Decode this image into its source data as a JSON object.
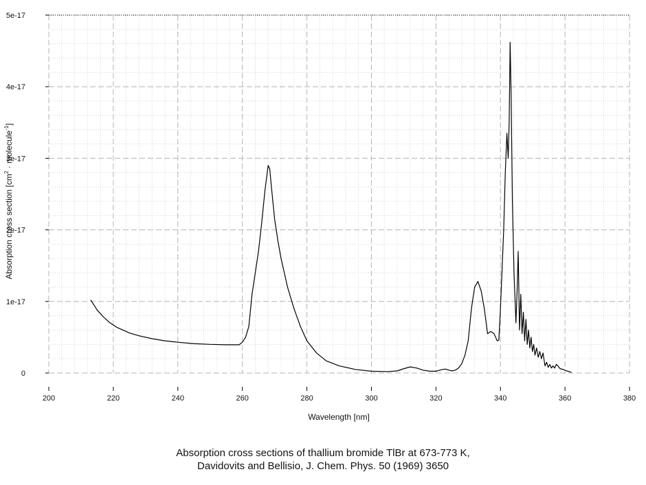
{
  "caption": {
    "line1": "Absorption cross sections of thallium bromide TlBr at 673-773 K,",
    "line2": "Davidovits and Bellisio, J. Chem. Phys. 50 (1969) 3650"
  },
  "colors": {
    "line": "#000000",
    "grid_major": "#b4b4b4",
    "grid_minor": "#d4d4d4"
  },
  "chart_data": {
    "type": "line",
    "title": "",
    "xlabel": "Wavelength [nm]",
    "ylabel_parts": [
      "Absorption cross section [cm",
      "2",
      " · molecule",
      "-1",
      "]"
    ],
    "xlim": [
      200,
      380
    ],
    "ylim": [
      0,
      5e-17
    ],
    "x_ticks": [
      200,
      220,
      240,
      260,
      280,
      300,
      320,
      340,
      360,
      380
    ],
    "x_tick_labels": [
      "200",
      "220",
      "240",
      "260",
      "280",
      "300",
      "320",
      "340",
      "360",
      "380"
    ],
    "y_ticks": [
      0,
      1e-17,
      2e-17,
      3e-17,
      4e-17,
      5e-17
    ],
    "y_tick_labels": [
      "0",
      "1e-17",
      "2e-17",
      "3e-17",
      "4e-17",
      "5e-17"
    ],
    "grid": true,
    "series": [
      {
        "points": [
          [
            213,
            1.02e-17
          ],
          [
            215,
            8.8e-18
          ],
          [
            217,
            7.8e-18
          ],
          [
            219,
            7e-18
          ],
          [
            221,
            6.4e-18
          ],
          [
            223,
            6e-18
          ],
          [
            225,
            5.6e-18
          ],
          [
            228,
            5.2e-18
          ],
          [
            232,
            4.8e-18
          ],
          [
            236,
            4.5e-18
          ],
          [
            240,
            4.3e-18
          ],
          [
            245,
            4.1e-18
          ],
          [
            250,
            4e-18
          ],
          [
            255,
            3.95e-18
          ],
          [
            259,
            3.95e-18
          ],
          [
            260,
            4.3e-18
          ],
          [
            261,
            5e-18
          ],
          [
            262,
            6.5e-18
          ],
          [
            263,
            1.1e-17
          ],
          [
            265,
            1.7e-17
          ],
          [
            266,
            2.1e-17
          ],
          [
            267,
            2.55e-17
          ],
          [
            268,
            2.9e-17
          ],
          [
            268.5,
            2.85e-17
          ],
          [
            269,
            2.6e-17
          ],
          [
            270,
            2.15e-17
          ],
          [
            271,
            1.85e-17
          ],
          [
            272,
            1.6e-17
          ],
          [
            274,
            1.2e-17
          ],
          [
            276,
            9e-18
          ],
          [
            278,
            6.5e-18
          ],
          [
            280,
            4.5e-18
          ],
          [
            283,
            2.8e-18
          ],
          [
            286,
            1.7e-18
          ],
          [
            290,
            1e-18
          ],
          [
            295,
            5e-19
          ],
          [
            300,
            2.5e-19
          ],
          [
            305,
            2e-19
          ],
          [
            308,
            3e-19
          ],
          [
            310,
            6e-19
          ],
          [
            312,
            8.5e-19
          ],
          [
            314,
            7e-19
          ],
          [
            316,
            4e-19
          ],
          [
            318,
            2.5e-19
          ],
          [
            320,
            2.5e-19
          ],
          [
            322,
            5e-19
          ],
          [
            323,
            5.5e-19
          ],
          [
            324,
            4e-19
          ],
          [
            325,
            3e-19
          ],
          [
            326,
            4e-19
          ],
          [
            327,
            7e-19
          ],
          [
            328,
            1.3e-18
          ],
          [
            329,
            2.5e-18
          ],
          [
            330,
            4.5e-18
          ],
          [
            331,
            9e-18
          ],
          [
            332,
            1.2e-17
          ],
          [
            333,
            1.28e-17
          ],
          [
            334,
            1.15e-17
          ],
          [
            335,
            9e-18
          ],
          [
            336,
            5.5e-18
          ],
          [
            337,
            5.8e-18
          ],
          [
            338,
            5.5e-18
          ],
          [
            339,
            4.5e-18
          ],
          [
            339.5,
            4.6e-18
          ],
          [
            340,
            9e-18
          ],
          [
            341,
            2e-17
          ],
          [
            341.5,
            2.8e-17
          ],
          [
            342,
            3.35e-17
          ],
          [
            342.4,
            3e-17
          ],
          [
            342.7,
            3.5e-17
          ],
          [
            343,
            4.62e-17
          ],
          [
            343.3,
            3.9e-17
          ],
          [
            343.7,
            2.4e-17
          ],
          [
            344.2,
            1.4e-17
          ],
          [
            344.8,
            7e-18
          ],
          [
            345.2,
            1.2e-17
          ],
          [
            345.5,
            1.7e-17
          ],
          [
            345.9,
            6e-18
          ],
          [
            346.3,
            1.1e-17
          ],
          [
            346.7,
            5.5e-18
          ],
          [
            347.1,
            8.5e-18
          ],
          [
            347.5,
            4.5e-18
          ],
          [
            347.9,
            7.5e-18
          ],
          [
            348.3,
            4e-18
          ],
          [
            348.7,
            6e-18
          ],
          [
            349.1,
            3.5e-18
          ],
          [
            349.5,
            5e-18
          ],
          [
            349.9,
            3e-18
          ],
          [
            350.3,
            4e-18
          ],
          [
            350.7,
            2.5e-18
          ],
          [
            351.2,
            3.5e-18
          ],
          [
            351.7,
            2.2e-18
          ],
          [
            352.2,
            3e-18
          ],
          [
            352.7,
            2e-18
          ],
          [
            353.2,
            2.8e-18
          ],
          [
            353.8,
            1e-18
          ],
          [
            354.3,
            1.5e-18
          ],
          [
            354.8,
            8e-19
          ],
          [
            355.3,
            1.2e-18
          ],
          [
            355.8,
            7e-19
          ],
          [
            356.3,
            1e-18
          ],
          [
            356.8,
            7e-19
          ],
          [
            357.3,
            1.2e-18
          ],
          [
            357.8,
            1e-18
          ],
          [
            358.5,
            6e-19
          ],
          [
            359.5,
            5e-19
          ],
          [
            360.5,
            3e-19
          ],
          [
            362,
            1e-19
          ]
        ]
      }
    ]
  }
}
